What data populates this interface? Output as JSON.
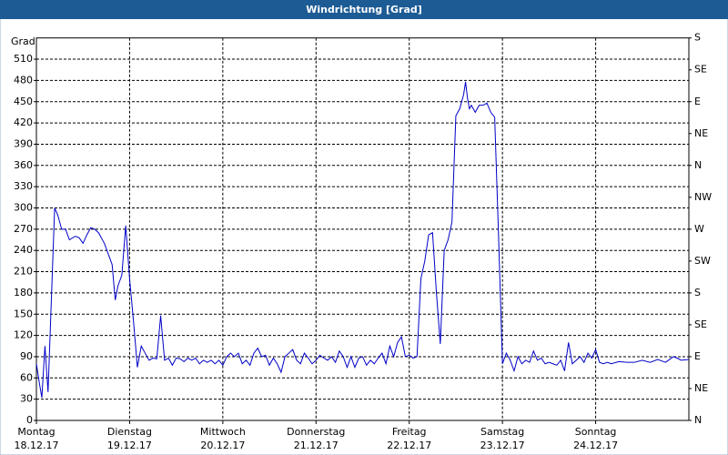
{
  "chart_data": {
    "type": "line",
    "title": "Windrichtung [Grad]",
    "y_label": "Grad",
    "xlim": [
      0,
      168
    ],
    "xticks": [
      {
        "value": 0,
        "label": "Montag",
        "date": "18.12.17"
      },
      {
        "value": 24,
        "label": "Dienstag",
        "date": "19.12.17"
      },
      {
        "value": 48,
        "label": "Mittwoch",
        "date": "20.12.17"
      },
      {
        "value": 72,
        "label": "Donnerstag",
        "date": "21.12.17"
      },
      {
        "value": 96,
        "label": "Freitag",
        "date": "22.12.17"
      },
      {
        "value": 120,
        "label": "Samstag",
        "date": "23.12.17"
      },
      {
        "value": 144,
        "label": "Sonntag",
        "date": "24.12.17"
      }
    ],
    "ylim": [
      0,
      540
    ],
    "yticks": [
      0,
      30,
      60,
      90,
      120,
      150,
      180,
      210,
      240,
      270,
      300,
      330,
      360,
      390,
      420,
      450,
      480,
      510
    ],
    "y2lim": [
      0,
      540
    ],
    "y2ticks": [
      {
        "value": 0,
        "label": "N"
      },
      {
        "value": 45,
        "label": "NE"
      },
      {
        "value": 90,
        "label": "E"
      },
      {
        "value": 135,
        "label": "SE"
      },
      {
        "value": 180,
        "label": "S"
      },
      {
        "value": 225,
        "label": "SW"
      },
      {
        "value": 270,
        "label": "W"
      },
      {
        "value": 315,
        "label": "NW"
      },
      {
        "value": 360,
        "label": "N"
      },
      {
        "value": 405,
        "label": "NE"
      },
      {
        "value": 450,
        "label": "E"
      },
      {
        "value": 495,
        "label": "SE"
      },
      {
        "value": 540,
        "label": "S"
      }
    ],
    "grid": true,
    "x": [
      0,
      0.7,
      1.4,
      2.2,
      3,
      4.7,
      5.5,
      6.5,
      7.5,
      8.5,
      10,
      11,
      12,
      13,
      14,
      15,
      16,
      17.5,
      18.5,
      19.5,
      20.3,
      21,
      22,
      23,
      24,
      25,
      26,
      27,
      28,
      29,
      30,
      31,
      32,
      33,
      34,
      35,
      36,
      37,
      38,
      39,
      40,
      41,
      42,
      43,
      44,
      45,
      46,
      47,
      48,
      49,
      50,
      51,
      52,
      53,
      54,
      55,
      56,
      57,
      58,
      59,
      60,
      61,
      62,
      63,
      64,
      65,
      66,
      67,
      68,
      69,
      70,
      71,
      72,
      73,
      74,
      75,
      76,
      77,
      78,
      79,
      80,
      81,
      82,
      83,
      84,
      85,
      86,
      87,
      88,
      89,
      90,
      91,
      92,
      93,
      94,
      95,
      96,
      97,
      98,
      99,
      100,
      101,
      102,
      103,
      104,
      105,
      106,
      107,
      108,
      109,
      110,
      110.5,
      111,
      111.5,
      112,
      113,
      114,
      115,
      116,
      117,
      118,
      119,
      120,
      121,
      122,
      123,
      124,
      125,
      126,
      127,
      128,
      129,
      130,
      131,
      132,
      133,
      134,
      135,
      136,
      137,
      138,
      139,
      140,
      141,
      142,
      143,
      144,
      145,
      146,
      147,
      148,
      150,
      152,
      154,
      156,
      158,
      160,
      162,
      164,
      165,
      166,
      168
    ],
    "series": [
      {
        "name": "Windrichtung",
        "color": "#0000c8",
        "values": [
          80,
          55,
          32,
          105,
          40,
          300,
          290,
          270,
          270,
          255,
          260,
          258,
          250,
          262,
          272,
          270,
          265,
          250,
          235,
          220,
          170,
          190,
          205,
          275,
          200,
          140,
          75,
          105,
          95,
          85,
          88,
          87,
          148,
          85,
          88,
          78,
          88,
          87,
          83,
          88,
          85,
          88,
          80,
          85,
          82,
          85,
          80,
          85,
          78,
          90,
          95,
          90,
          95,
          80,
          85,
          78,
          95,
          102,
          90,
          92,
          78,
          88,
          80,
          68,
          90,
          95,
          100,
          85,
          80,
          95,
          88,
          80,
          85,
          92,
          88,
          85,
          90,
          82,
          98,
          90,
          75,
          90,
          75,
          88,
          90,
          78,
          85,
          80,
          88,
          95,
          80,
          105,
          90,
          110,
          118,
          90,
          92,
          88,
          90,
          200,
          225,
          262,
          265,
          180,
          108,
          240,
          255,
          280,
          430,
          440,
          460,
          478,
          455,
          440,
          445,
          435,
          445,
          445,
          448,
          435,
          428,
          260,
          80,
          95,
          85,
          70,
          90,
          80,
          85,
          82,
          98,
          85,
          88,
          80,
          82,
          80,
          78,
          85,
          70,
          110,
          80,
          85,
          90,
          82,
          95,
          88,
          100,
          82,
          80,
          82,
          80,
          83,
          82,
          82,
          85,
          82,
          86,
          82,
          90,
          88,
          85,
          86
        ]
      }
    ]
  }
}
